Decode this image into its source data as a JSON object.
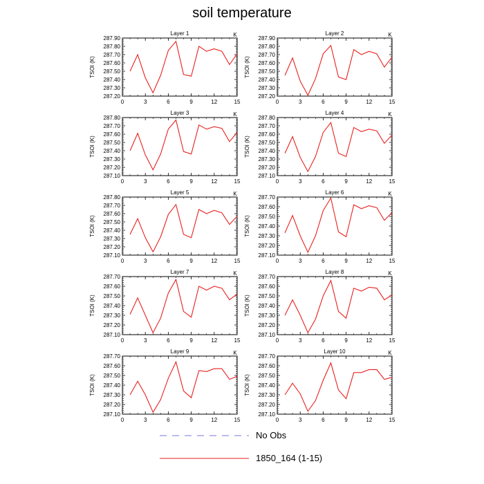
{
  "title": "soil temperature",
  "legend": [
    {
      "label": "No Obs",
      "color": "#7777dd",
      "style": "dashed"
    },
    {
      "label": "1850_164 (1-15)",
      "color": "#e8211f",
      "style": "solid"
    }
  ],
  "chart_data": [
    {
      "type": "line",
      "title": "Layer 1",
      "corner_label": "K",
      "xlabel": "",
      "ylabel": "TSOI  (K)",
      "xlim": [
        0,
        15
      ],
      "ylim": [
        287.2,
        287.9
      ],
      "xticks": [
        0,
        3,
        6,
        9,
        12,
        15
      ],
      "yticks": [
        "287.20",
        "287.30",
        "287.40",
        "287.50",
        "287.60",
        "287.70",
        "287.80",
        "287.90"
      ],
      "series": [
        {
          "x": [
            1,
            2,
            3,
            4,
            5,
            6,
            7,
            8,
            9,
            10,
            11,
            12,
            13,
            14,
            15
          ],
          "y": [
            287.5,
            287.7,
            287.42,
            287.24,
            287.45,
            287.75,
            287.86,
            287.46,
            287.44,
            287.8,
            287.74,
            287.77,
            287.74,
            287.58,
            287.71
          ]
        }
      ]
    },
    {
      "type": "line",
      "title": "Layer 2",
      "corner_label": "K",
      "xlabel": "",
      "ylabel": "TSOI  (K)",
      "xlim": [
        0,
        15
      ],
      "ylim": [
        287.2,
        287.9
      ],
      "xticks": [
        0,
        3,
        6,
        9,
        12,
        15
      ],
      "yticks": [
        "287.20",
        "287.30",
        "287.40",
        "287.50",
        "287.60",
        "287.70",
        "287.80",
        "287.90"
      ],
      "series": [
        {
          "x": [
            1,
            2,
            3,
            4,
            5,
            6,
            7,
            8,
            9,
            10,
            11,
            12,
            13,
            14,
            15
          ],
          "y": [
            287.45,
            287.66,
            287.38,
            287.21,
            287.41,
            287.71,
            287.81,
            287.43,
            287.4,
            287.76,
            287.7,
            287.74,
            287.71,
            287.55,
            287.67
          ]
        }
      ]
    },
    {
      "type": "line",
      "title": "Layer 3",
      "corner_label": "K",
      "xlabel": "",
      "ylabel": "TSOI  (K)",
      "xlim": [
        0,
        15
      ],
      "ylim": [
        287.1,
        287.8
      ],
      "xticks": [
        0,
        3,
        6,
        9,
        12,
        15
      ],
      "yticks": [
        "287.10",
        "287.20",
        "287.30",
        "287.40",
        "287.50",
        "287.60",
        "287.70",
        "287.80"
      ],
      "series": [
        {
          "x": [
            1,
            2,
            3,
            4,
            5,
            6,
            7,
            8,
            9,
            10,
            11,
            12,
            13,
            14,
            15
          ],
          "y": [
            287.4,
            287.61,
            287.35,
            287.17,
            287.36,
            287.66,
            287.77,
            287.39,
            287.36,
            287.71,
            287.66,
            287.69,
            287.67,
            287.51,
            287.62
          ]
        }
      ]
    },
    {
      "type": "line",
      "title": "Layer 4",
      "corner_label": "K",
      "xlabel": "",
      "ylabel": "TSOI  (K)",
      "xlim": [
        0,
        15
      ],
      "ylim": [
        287.1,
        287.8
      ],
      "xticks": [
        0,
        3,
        6,
        9,
        12,
        15
      ],
      "yticks": [
        "287.10",
        "287.20",
        "287.30",
        "287.40",
        "287.50",
        "287.60",
        "287.70",
        "287.80"
      ],
      "series": [
        {
          "x": [
            1,
            2,
            3,
            4,
            5,
            6,
            7,
            8,
            9,
            10,
            11,
            12,
            13,
            14,
            15
          ],
          "y": [
            287.37,
            287.57,
            287.32,
            287.15,
            287.33,
            287.62,
            287.74,
            287.37,
            287.33,
            287.68,
            287.63,
            287.66,
            287.64,
            287.49,
            287.59
          ]
        }
      ]
    },
    {
      "type": "line",
      "title": "Layer 5",
      "corner_label": "K",
      "xlabel": "",
      "ylabel": "TSOI  (K)",
      "xlim": [
        0,
        15
      ],
      "ylim": [
        287.1,
        287.8
      ],
      "xticks": [
        0,
        3,
        6,
        9,
        12,
        15
      ],
      "yticks": [
        "287.10",
        "287.20",
        "287.30",
        "287.40",
        "287.50",
        "287.60",
        "287.70",
        "287.80"
      ],
      "series": [
        {
          "x": [
            1,
            2,
            3,
            4,
            5,
            6,
            7,
            8,
            9,
            10,
            11,
            12,
            13,
            14,
            15
          ],
          "y": [
            287.35,
            287.54,
            287.31,
            287.14,
            287.32,
            287.59,
            287.71,
            287.35,
            287.31,
            287.65,
            287.6,
            287.64,
            287.61,
            287.47,
            287.57
          ]
        }
      ]
    },
    {
      "type": "line",
      "title": "Layer 6",
      "corner_label": "K",
      "xlabel": "",
      "ylabel": "TSOI  (K)",
      "xlim": [
        0,
        15
      ],
      "ylim": [
        287.1,
        287.7
      ],
      "xticks": [
        0,
        3,
        6,
        9,
        12,
        15
      ],
      "yticks": [
        "287.10",
        "287.20",
        "287.30",
        "287.40",
        "287.50",
        "287.60",
        "287.70"
      ],
      "series": [
        {
          "x": [
            1,
            2,
            3,
            4,
            5,
            6,
            7,
            8,
            9,
            10,
            11,
            12,
            13,
            14,
            15
          ],
          "y": [
            287.33,
            287.51,
            287.3,
            287.13,
            287.3,
            287.56,
            287.69,
            287.34,
            287.29,
            287.62,
            287.58,
            287.61,
            287.59,
            287.46,
            287.54
          ]
        }
      ]
    },
    {
      "type": "line",
      "title": "Layer 7",
      "corner_label": "K",
      "xlabel": "",
      "ylabel": "TSOI  (K)",
      "xlim": [
        0,
        15
      ],
      "ylim": [
        287.1,
        287.7
      ],
      "xticks": [
        0,
        3,
        6,
        9,
        12,
        15
      ],
      "yticks": [
        "287.10",
        "287.20",
        "287.30",
        "287.40",
        "287.50",
        "287.60",
        "287.70"
      ],
      "series": [
        {
          "x": [
            1,
            2,
            3,
            4,
            5,
            6,
            7,
            8,
            9,
            10,
            11,
            12,
            13,
            14,
            15
          ],
          "y": [
            287.31,
            287.48,
            287.3,
            287.12,
            287.27,
            287.53,
            287.67,
            287.34,
            287.28,
            287.6,
            287.56,
            287.6,
            287.58,
            287.46,
            287.52
          ]
        }
      ]
    },
    {
      "type": "line",
      "title": "Layer 8",
      "corner_label": "K",
      "xlabel": "",
      "ylabel": "TSOI  (K)",
      "xlim": [
        0,
        15
      ],
      "ylim": [
        287.1,
        287.7
      ],
      "xticks": [
        0,
        3,
        6,
        9,
        12,
        15
      ],
      "yticks": [
        "287.10",
        "287.20",
        "287.30",
        "287.40",
        "287.50",
        "287.60",
        "287.70"
      ],
      "series": [
        {
          "x": [
            1,
            2,
            3,
            4,
            5,
            6,
            7,
            8,
            9,
            10,
            11,
            12,
            13,
            14,
            15
          ],
          "y": [
            287.3,
            287.46,
            287.3,
            287.12,
            287.26,
            287.5,
            287.66,
            287.34,
            287.27,
            287.58,
            287.55,
            287.59,
            287.58,
            287.46,
            287.51
          ]
        }
      ]
    },
    {
      "type": "line",
      "title": "Layer 9",
      "corner_label": "K",
      "xlabel": "",
      "ylabel": "TSOI  (K)",
      "xlim": [
        0,
        15
      ],
      "ylim": [
        287.1,
        287.7
      ],
      "xticks": [
        0,
        3,
        6,
        9,
        12,
        15
      ],
      "yticks": [
        "287.10",
        "287.20",
        "287.30",
        "287.40",
        "287.50",
        "287.60",
        "287.70"
      ],
      "series": [
        {
          "x": [
            1,
            2,
            3,
            4,
            5,
            6,
            7,
            8,
            9,
            10,
            11,
            12,
            13,
            14,
            15
          ],
          "y": [
            287.3,
            287.44,
            287.3,
            287.12,
            287.25,
            287.47,
            287.64,
            287.34,
            287.27,
            287.55,
            287.54,
            287.57,
            287.57,
            287.46,
            287.49
          ]
        }
      ]
    },
    {
      "type": "line",
      "title": "Layer 10",
      "corner_label": "K",
      "xlabel": "",
      "ylabel": "TSOI  (K)",
      "xlim": [
        0,
        15
      ],
      "ylim": [
        287.1,
        287.7
      ],
      "xticks": [
        0,
        3,
        6,
        9,
        12,
        15
      ],
      "yticks": [
        "287.10",
        "287.20",
        "287.30",
        "287.40",
        "287.50",
        "287.60",
        "287.70"
      ],
      "series": [
        {
          "x": [
            1,
            2,
            3,
            4,
            5,
            6,
            7,
            8,
            9,
            10,
            11,
            12,
            13,
            14,
            15
          ],
          "y": [
            287.3,
            287.42,
            287.31,
            287.13,
            287.24,
            287.45,
            287.63,
            287.35,
            287.26,
            287.53,
            287.53,
            287.56,
            287.56,
            287.46,
            287.48
          ]
        }
      ]
    }
  ]
}
